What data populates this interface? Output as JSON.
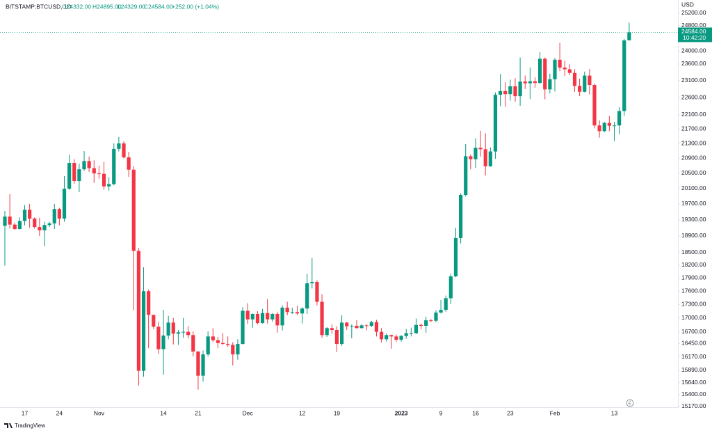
{
  "chart_data": {
    "type": "candlestick",
    "header": {
      "symbol": "BITSTAMP:BTCUSD, 1D",
      "open": "O24332.00",
      "high": "H24895.00",
      "low": "L24329.00",
      "close": "C24584.00",
      "change": "+252.00 (+1.04%)"
    },
    "currency": "USD",
    "last_price_label": "24584.00",
    "countdown": "10:42:20",
    "brand": "TradingView",
    "up_color": "#089981",
    "down_color": "#f23645",
    "log_scale": true,
    "grid": false,
    "categories": [
      null,
      null,
      null,
      null,
      "17",
      null,
      null,
      null,
      null,
      null,
      null,
      "24",
      null,
      null,
      null,
      null,
      null,
      null,
      null,
      "Nov",
      null,
      null,
      null,
      null,
      null,
      null,
      null,
      null,
      null,
      null,
      null,
      null,
      "14",
      null,
      null,
      null,
      null,
      null,
      null,
      "21",
      null,
      null,
      null,
      null,
      null,
      null,
      null,
      null,
      null,
      "Dec",
      null,
      null,
      null,
      null,
      null,
      null,
      null,
      null,
      null,
      null,
      "12",
      null,
      null,
      null,
      null,
      null,
      null,
      "19",
      null,
      null,
      null,
      null,
      null,
      null,
      null,
      null,
      null,
      null,
      null,
      null,
      "2023",
      null,
      null,
      null,
      null,
      null,
      null,
      null,
      "9",
      null,
      null,
      null,
      null,
      null,
      null,
      "16",
      null,
      null,
      null,
      null,
      null,
      null,
      "23",
      null,
      null,
      null,
      null,
      null,
      null,
      null,
      null,
      "Feb",
      null,
      null,
      null,
      null,
      null,
      null,
      null,
      null,
      null,
      null,
      null,
      "13",
      null,
      null,
      null
    ],
    "open": [
      19150,
      19380,
      19180,
      19070,
      19270,
      19550,
      19330,
      19120,
      19040,
      19170,
      19210,
      19570,
      19330,
      20090,
      20770,
      20290,
      20600,
      20820,
      20630,
      20490,
      20480,
      20150,
      20210,
      21150,
      21300,
      20920,
      20590,
      18540,
      15880,
      17600,
      17070,
      16810,
      16330,
      16620,
      16900,
      16660,
      16690,
      16700,
      16630,
      16280,
      15780,
      16220,
      16600,
      16520,
      16460,
      16440,
      16420,
      16220,
      16440,
      17160,
      16970,
      17090,
      16890,
      17110,
      16970,
      17090,
      16840,
      17230,
      17130,
      17130,
      17100,
      17210,
      17780,
      17810,
      17360,
      16630,
      16780,
      16740,
      16440,
      16900,
      16820,
      16830,
      16780,
      16840,
      16830,
      16910,
      16700,
      16540,
      16630,
      16600,
      16530,
      16610,
      16670,
      16670,
      16850,
      16830,
      16950,
      16940,
      17120,
      17180,
      17440,
      17940,
      18850,
      19930,
      20950,
      20870,
      21180,
      21140,
      20680,
      21080,
      22680,
      22790,
      22700,
      22930,
      22640,
      23070,
      23020,
      23080,
      23030,
      23760,
      22840,
      23140,
      23730,
      23490,
      23440,
      23330,
      22940,
      22770,
      23250,
      22970,
      21800,
      21640,
      21870,
      21790,
      21800,
      22210,
      24332
    ],
    "high": [
      19520,
      19950,
      19230,
      19360,
      19670,
      19700,
      19360,
      19350,
      19250,
      19250,
      19700,
      19600,
      20420,
      20990,
      20870,
      20750,
      21090,
      20940,
      20840,
      20700,
      20800,
      20390,
      21300,
      21480,
      21360,
      21070,
      20680,
      18610,
      18150,
      17640,
      17070,
      16920,
      17180,
      17050,
      17000,
      16740,
      17000,
      16820,
      16710,
      16290,
      16300,
      16710,
      16780,
      16590,
      16670,
      16600,
      16480,
      16540,
      17240,
      17330,
      17100,
      17150,
      17200,
      17420,
      17110,
      17140,
      17280,
      17360,
      17230,
      17270,
      17240,
      18000,
      18370,
      17850,
      17530,
      16800,
      16860,
      16820,
      17060,
      16910,
      16860,
      16950,
      16870,
      16860,
      16940,
      16960,
      16780,
      16660,
      16640,
      16640,
      16630,
      16760,
      16790,
      16990,
      16880,
      17030,
      16980,
      17170,
      17400,
      17500,
      18000,
      19100,
      19970,
      21280,
      21000,
      21440,
      21650,
      21580,
      21190,
      22750,
      23300,
      23050,
      23130,
      23170,
      23800,
      23250,
      23490,
      23200,
      23960,
      23800,
      23310,
      23790,
      24250,
      23700,
      23590,
      23440,
      23160,
      23370,
      23450,
      23010,
      21940,
      21900,
      22070,
      21900,
      22320,
      24380,
      24895
    ],
    "low": [
      18190,
      19080,
      19050,
      19060,
      19160,
      19100,
      19080,
      18900,
      18650,
      19120,
      19070,
      19160,
      19250,
      20060,
      20220,
      20000,
      20560,
      20530,
      20240,
      20350,
      20060,
      20040,
      20180,
      21080,
      20890,
      20400,
      17170,
      15580,
      15760,
      16350,
      16760,
      16230,
      15800,
      16540,
      16430,
      16420,
      16570,
      16560,
      16180,
      15500,
      15660,
      16180,
      16480,
      16350,
      16420,
      16380,
      15990,
      16110,
      16430,
      16870,
      16790,
      16860,
      16880,
      16880,
      16920,
      16680,
      16730,
      17060,
      17090,
      17070,
      16880,
      17090,
      17660,
      17280,
      16570,
      16590,
      16660,
      16270,
      16400,
      16740,
      16560,
      16770,
      16770,
      16730,
      16800,
      16600,
      16470,
      16490,
      16340,
      16490,
      16490,
      16550,
      16600,
      16650,
      16750,
      16680,
      16910,
      16910,
      17100,
      17140,
      17310,
      17920,
      18720,
      19890,
      20600,
      20640,
      20940,
      20440,
      20670,
      20880,
      22350,
      22330,
      22510,
      22480,
      22360,
      22850,
      22560,
      22890,
      23000,
      22550,
      22720,
      22780,
      23380,
      23240,
      23260,
      22770,
      22640,
      22750,
      22690,
      21720,
      21460,
      21610,
      21640,
      21370,
      21550,
      22070,
      24329
    ],
    "close": [
      19380,
      19180,
      19070,
      19270,
      19550,
      19330,
      19120,
      19040,
      19170,
      19210,
      19570,
      19330,
      20090,
      20770,
      20290,
      20600,
      20820,
      20630,
      20490,
      20480,
      20150,
      20210,
      21150,
      21300,
      20920,
      20590,
      18540,
      15880,
      17600,
      17070,
      16810,
      16330,
      16620,
      16900,
      16660,
      16690,
      16700,
      16630,
      16280,
      15780,
      16220,
      16600,
      16520,
      16460,
      16440,
      16420,
      16220,
      16440,
      17160,
      16970,
      17090,
      16890,
      17110,
      16970,
      17090,
      16840,
      17230,
      17130,
      17130,
      17100,
      17210,
      17780,
      17810,
      17360,
      16630,
      16780,
      16740,
      16440,
      16900,
      16820,
      16830,
      16780,
      16840,
      16830,
      16910,
      16700,
      16540,
      16630,
      16600,
      16530,
      16610,
      16670,
      16670,
      16850,
      16830,
      16950,
      16940,
      17120,
      17180,
      17440,
      17940,
      18850,
      19930,
      20950,
      20870,
      21180,
      21140,
      20680,
      21080,
      22680,
      22790,
      22700,
      22930,
      22640,
      23070,
      23020,
      23080,
      23030,
      23760,
      22840,
      23140,
      23730,
      23490,
      23440,
      23330,
      22940,
      22770,
      23250,
      22970,
      21800,
      21640,
      21870,
      21790,
      21800,
      22210,
      24330,
      24584
    ],
    "ylim": [
      15150,
      25450
    ],
    "yticks": [
      {
        "value": 15170,
        "label": "15170.00"
      },
      {
        "value": 15400,
        "label": "15400.00"
      },
      {
        "value": 15640,
        "label": "15640.00"
      },
      {
        "value": 15890,
        "label": "15890.00"
      },
      {
        "value": 16170,
        "label": "16170.00"
      },
      {
        "value": 16450,
        "label": "16450.00"
      },
      {
        "value": 16700,
        "label": "16700.00"
      },
      {
        "value": 17000,
        "label": "17000.00"
      },
      {
        "value": 17300,
        "label": "17300.00"
      },
      {
        "value": 17600,
        "label": "17600.00"
      },
      {
        "value": 17900,
        "label": "17900.00"
      },
      {
        "value": 18200,
        "label": "18200.00"
      },
      {
        "value": 18500,
        "label": "18500.00"
      },
      {
        "value": 18900,
        "label": "18900.00"
      },
      {
        "value": 19300,
        "label": "19300.00"
      },
      {
        "value": 19700,
        "label": "19700.00"
      },
      {
        "value": 20100,
        "label": "20100.00"
      },
      {
        "value": 20500,
        "label": "20500.00"
      },
      {
        "value": 20900,
        "label": "20900.00"
      },
      {
        "value": 21300,
        "label": "21300.00"
      },
      {
        "value": 21700,
        "label": "21700.00"
      },
      {
        "value": 22100,
        "label": "22100.00"
      },
      {
        "value": 22600,
        "label": "22600.00"
      },
      {
        "value": 23100,
        "label": "23100.00"
      },
      {
        "value": 23600,
        "label": "23600.00"
      },
      {
        "value": 24000,
        "label": "24000.00"
      },
      {
        "value": 24800,
        "label": "24800.00"
      },
      {
        "value": 25200,
        "label": "25200.00"
      }
    ]
  }
}
